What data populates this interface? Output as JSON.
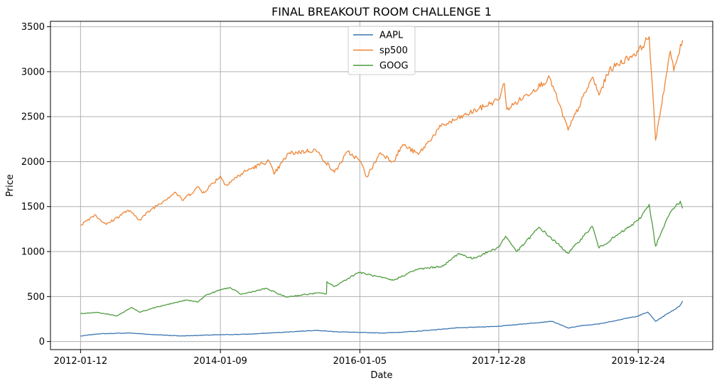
{
  "chart_data": {
    "type": "line",
    "title": "FINAL BREAKOUT ROOM CHALLENGE 1",
    "xlabel": "Date",
    "ylabel": "Price",
    "x_range": [
      "2012-01-12",
      "2020-08-11"
    ],
    "ylim": [
      -90,
      3560
    ],
    "x_ticks": [
      "2012-01-12",
      "2014-01-09",
      "2016-01-05",
      "2017-12-28",
      "2019-12-24"
    ],
    "y_ticks": [
      0,
      500,
      1000,
      1500,
      2000,
      2500,
      3000,
      3500
    ],
    "grid": true,
    "legend": "upper-center",
    "series": [
      {
        "name": "AAPL",
        "color": "#3a75b0",
        "points": [
          [
            "2012-01-12",
            60
          ],
          [
            "2012-04-10",
            85
          ],
          [
            "2012-09-20",
            95
          ],
          [
            "2013-01-15",
            78
          ],
          [
            "2013-06-20",
            62
          ],
          [
            "2013-09-15",
            68
          ],
          [
            "2014-01-09",
            75
          ],
          [
            "2014-06-09",
            82
          ],
          [
            "2014-12-01",
            103
          ],
          [
            "2015-05-20",
            125
          ],
          [
            "2015-08-20",
            110
          ],
          [
            "2016-01-05",
            100
          ],
          [
            "2016-05-12",
            95
          ],
          [
            "2016-10-25",
            113
          ],
          [
            "2017-05-15",
            150
          ],
          [
            "2017-12-28",
            170
          ],
          [
            "2018-10-01",
            225
          ],
          [
            "2018-12-24",
            150
          ],
          [
            "2019-03-01",
            175
          ],
          [
            "2019-06-01",
            195
          ],
          [
            "2019-12-24",
            284
          ],
          [
            "2020-02-12",
            327
          ],
          [
            "2020-03-23",
            224
          ],
          [
            "2020-06-01",
            320
          ],
          [
            "2020-07-25",
            390
          ],
          [
            "2020-08-11",
            450
          ]
        ]
      },
      {
        "name": "sp500",
        "color": "#ef8536",
        "points": [
          [
            "2012-01-12",
            1295
          ],
          [
            "2012-03-25",
            1410
          ],
          [
            "2012-05-25",
            1300
          ],
          [
            "2012-09-15",
            1460
          ],
          [
            "2012-11-15",
            1355
          ],
          [
            "2013-01-15",
            1470
          ],
          [
            "2013-05-20",
            1660
          ],
          [
            "2013-06-24",
            1570
          ],
          [
            "2013-09-18",
            1720
          ],
          [
            "2013-10-08",
            1650
          ],
          [
            "2014-01-09",
            1840
          ],
          [
            "2014-02-03",
            1740
          ],
          [
            "2014-05-25",
            1900
          ],
          [
            "2014-09-18",
            2010
          ],
          [
            "2014-10-15",
            1860
          ],
          [
            "2014-12-29",
            2090
          ],
          [
            "2015-05-20",
            2130
          ],
          [
            "2015-08-25",
            1880
          ],
          [
            "2015-11-03",
            2110
          ],
          [
            "2016-01-05",
            2010
          ],
          [
            "2016-02-11",
            1830
          ],
          [
            "2016-04-20",
            2100
          ],
          [
            "2016-06-27",
            2000
          ],
          [
            "2016-08-15",
            2190
          ],
          [
            "2016-11-04",
            2080
          ],
          [
            "2017-03-01",
            2390
          ],
          [
            "2017-12-28",
            2690
          ],
          [
            "2018-01-26",
            2870
          ],
          [
            "2018-02-08",
            2580
          ],
          [
            "2018-09-20",
            2930
          ],
          [
            "2018-12-24",
            2350
          ],
          [
            "2019-04-30",
            2940
          ],
          [
            "2019-06-03",
            2740
          ],
          [
            "2019-07-26",
            3020
          ],
          [
            "2019-12-24",
            3225
          ],
          [
            "2020-02-19",
            3390
          ],
          [
            "2020-03-23",
            2240
          ],
          [
            "2020-06-08",
            3230
          ],
          [
            "2020-06-26",
            3010
          ],
          [
            "2020-08-11",
            3350
          ]
        ]
      },
      {
        "name": "GOOG",
        "color": "#4f9c3f",
        "points": [
          [
            "2012-01-12",
            310
          ],
          [
            "2012-04-05",
            325
          ],
          [
            "2012-07-20",
            285
          ],
          [
            "2012-10-04",
            380
          ],
          [
            "2012-11-15",
            325
          ],
          [
            "2013-01-25",
            375
          ],
          [
            "2013-07-15",
            460
          ],
          [
            "2013-09-15",
            440
          ],
          [
            "2013-10-20",
            510
          ],
          [
            "2014-01-09",
            575
          ],
          [
            "2014-02-25",
            600
          ],
          [
            "2014-04-28",
            525
          ],
          [
            "2014-09-05",
            590
          ],
          [
            "2014-12-15",
            495
          ],
          [
            "2015-06-01",
            540
          ],
          [
            "2015-07-15",
            530
          ],
          [
            "2015-07-17",
            665
          ],
          [
            "2015-08-24",
            610
          ],
          [
            "2015-12-29",
            770
          ],
          [
            "2016-06-27",
            680
          ],
          [
            "2016-10-24",
            800
          ],
          [
            "2017-03-15",
            840
          ],
          [
            "2017-06-01",
            980
          ],
          [
            "2017-08-15",
            920
          ],
          [
            "2017-12-28",
            1050
          ],
          [
            "2018-02-01",
            1170
          ],
          [
            "2018-04-02",
            1000
          ],
          [
            "2018-07-26",
            1270
          ],
          [
            "2018-12-24",
            980
          ],
          [
            "2019-04-29",
            1280
          ],
          [
            "2019-06-03",
            1040
          ],
          [
            "2019-12-24",
            1345
          ],
          [
            "2020-02-19",
            1525
          ],
          [
            "2020-03-23",
            1060
          ],
          [
            "2020-06-08",
            1440
          ],
          [
            "2020-07-30",
            1560
          ],
          [
            "2020-08-11",
            1480
          ]
        ]
      }
    ]
  }
}
